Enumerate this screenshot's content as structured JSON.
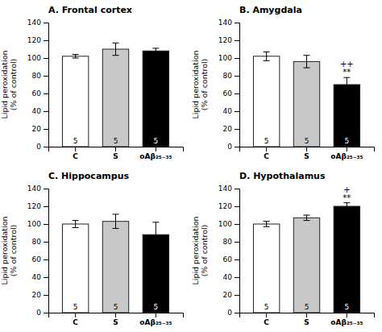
{
  "chart_data": [
    {
      "type": "bar",
      "title": "A. Frontal cortex",
      "categories": [
        "C",
        "S",
        "oAβ₂₅₋₃₅"
      ],
      "values": [
        102,
        110,
        108
      ],
      "errors": [
        2,
        7,
        3
      ],
      "n_labels": [
        "5",
        "5",
        "5"
      ],
      "colors": [
        "white",
        "#c8c8c8",
        "black"
      ],
      "ylabel": "Lipid peroxidation\n(% of control)",
      "ylim": [
        0,
        140
      ],
      "yticks": [
        0,
        20,
        40,
        60,
        80,
        100,
        120,
        140
      ],
      "grid": false
    },
    {
      "type": "bar",
      "title": "B. Amygdala",
      "categories": [
        "C",
        "S",
        "oAβ₂₅₋₃₅"
      ],
      "values": [
        102,
        96,
        70
      ],
      "errors": [
        5,
        7,
        8
      ],
      "n_labels": [
        "5",
        "5",
        "5"
      ],
      "annotations": [
        {
          "category": "oAβ₂₅₋₃₅",
          "text": "++\n**"
        }
      ],
      "colors": [
        "white",
        "#c8c8c8",
        "black"
      ],
      "ylabel": "Lipid peroxidation\n(% of control)",
      "ylim": [
        0,
        140
      ],
      "yticks": [
        0,
        20,
        40,
        60,
        80,
        100,
        120,
        140
      ],
      "grid": false
    },
    {
      "type": "bar",
      "title": "C. Hippocampus",
      "categories": [
        "C",
        "S",
        "oAβ₂₅₋₃₅"
      ],
      "values": [
        100,
        103,
        88
      ],
      "errors": [
        4,
        8,
        14
      ],
      "n_labels": [
        "5",
        "5",
        "5"
      ],
      "colors": [
        "white",
        "#c8c8c8",
        "black"
      ],
      "ylabel": "Lipid peroxidation\n(% of control)",
      "ylim": [
        0,
        140
      ],
      "yticks": [
        0,
        20,
        40,
        60,
        80,
        100,
        120,
        140
      ],
      "grid": false
    },
    {
      "type": "bar",
      "title": "D. Hypothalamus",
      "categories": [
        "C",
        "S",
        "oAβ₂₅₋₃₅"
      ],
      "values": [
        100,
        107,
        120
      ],
      "errors": [
        3,
        3,
        4
      ],
      "n_labels": [
        "5",
        "5",
        "5"
      ],
      "annotations": [
        {
          "category": "oAβ₂₅₋₃₅",
          "text": "+\n**"
        }
      ],
      "colors": [
        "white",
        "#c8c8c8",
        "black"
      ],
      "ylabel": "Lipid peroxidation\n(% of control)",
      "ylim": [
        0,
        140
      ],
      "yticks": [
        0,
        20,
        40,
        60,
        80,
        100,
        120,
        140
      ],
      "grid": false
    }
  ]
}
